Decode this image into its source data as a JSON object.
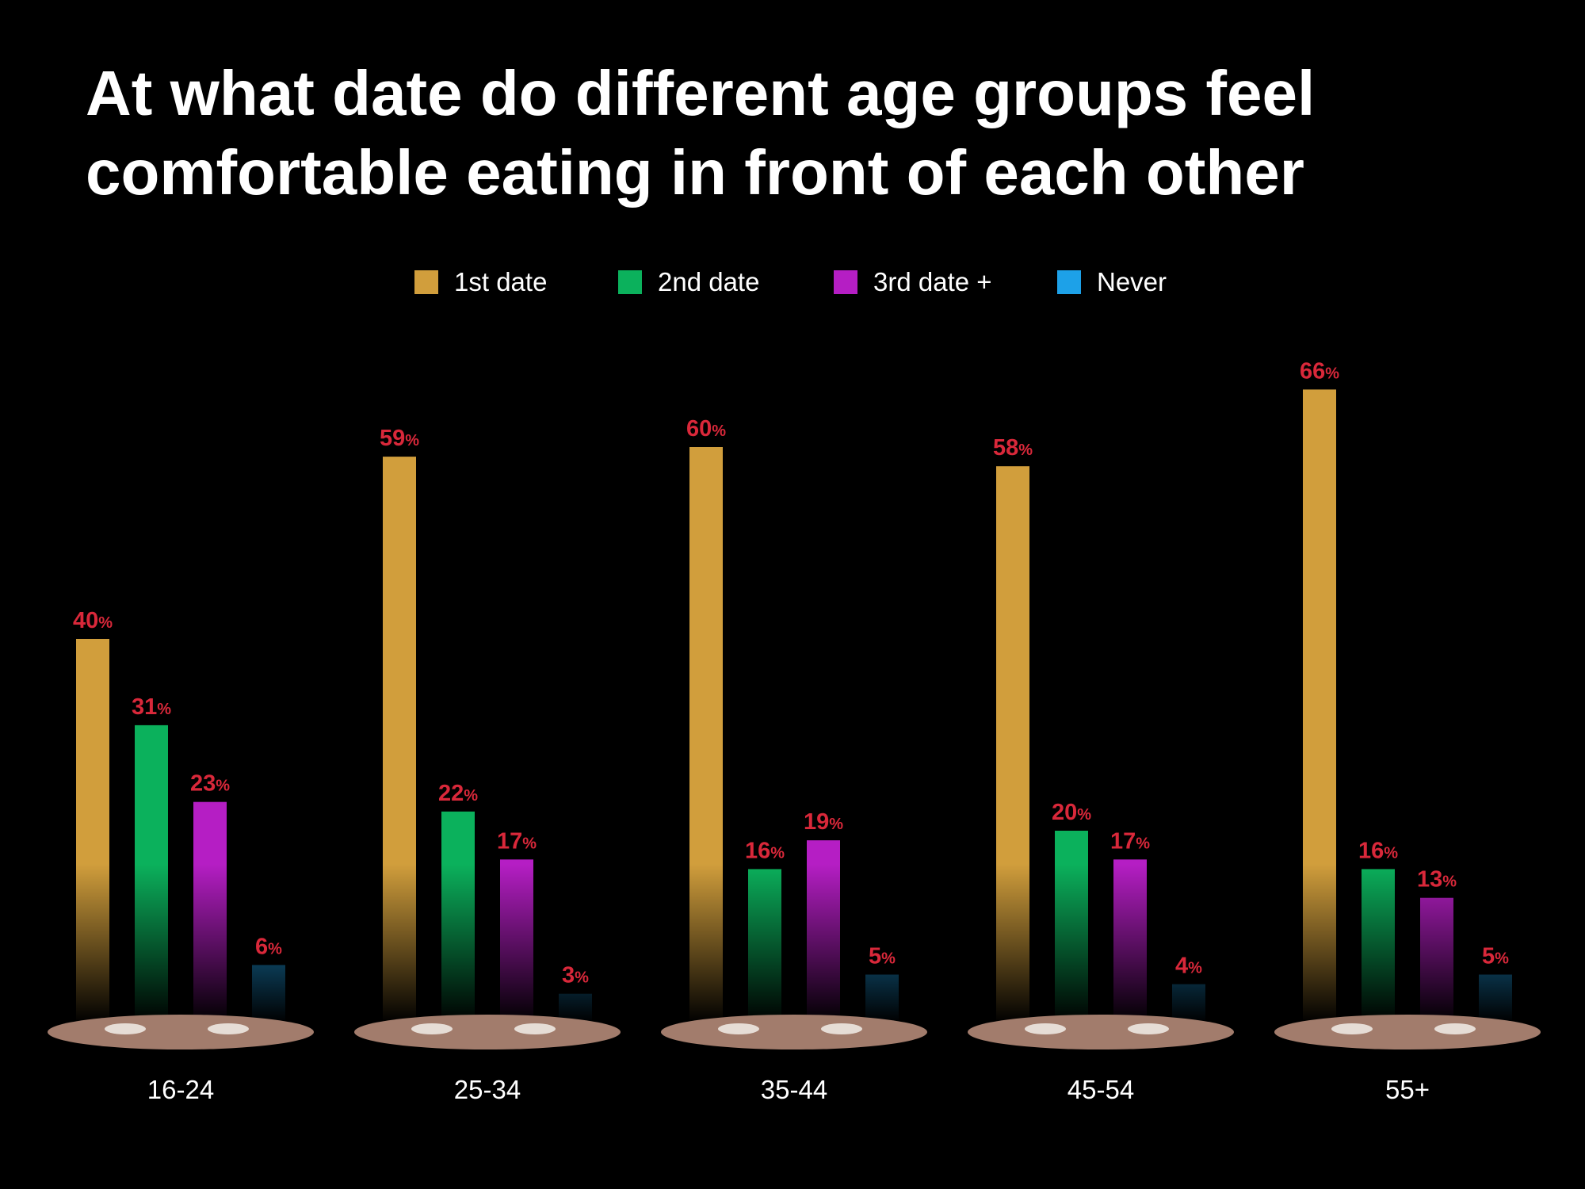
{
  "title_lines": [
    "At what date do different age groups feel",
    "comfortable eating in front of each other"
  ],
  "colors": {
    "background": "#000000",
    "label_red": "#d9283a",
    "text": "#ffffff"
  },
  "chart_data": {
    "type": "bar",
    "title": "At what date do different age groups feel comfortable eating in front of each other",
    "xlabel": "",
    "ylabel": "",
    "ylim": [
      0,
      70
    ],
    "grid": false,
    "legend_position": "top-center",
    "categories": [
      "16-24",
      "25-34",
      "35-44",
      "45-54",
      "55+"
    ],
    "series": [
      {
        "name": "1st date",
        "color": "#d19e3c",
        "values": [
          40,
          59,
          60,
          58,
          66
        ]
      },
      {
        "name": "2nd date",
        "color": "#0bb15c",
        "values": [
          31,
          22,
          16,
          20,
          16
        ]
      },
      {
        "name": "3rd date +",
        "color": "#b51ec4",
        "values": [
          23,
          17,
          19,
          17,
          13
        ]
      },
      {
        "name": "Never",
        "color": "#1da1e8",
        "values": [
          6,
          3,
          5,
          4,
          5
        ]
      }
    ],
    "value_suffix": "%"
  }
}
